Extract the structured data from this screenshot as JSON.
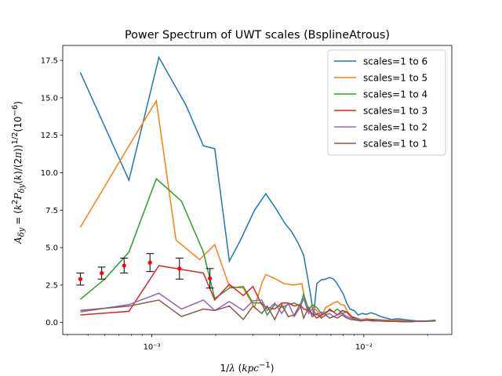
{
  "chart_data": {
    "type": "line",
    "title": "Power Spectrum of UWT scales (BsplineAtrous)",
    "xlabel": "1/λ (kpc⁻¹)",
    "ylabel": "Aδy = (k²Pδy(k)/(2π))¹⁄²(10⁻⁶)",
    "xscale": "log",
    "xlim": [
      0.00038,
      0.026
    ],
    "ylim": [
      -0.8,
      18.5
    ],
    "x_ticks": [
      {
        "value": 0.001,
        "label": "10⁻³"
      },
      {
        "value": 0.01,
        "label": "10⁻²"
      }
    ],
    "y_ticks": [
      "0.0",
      "2.5",
      "5.0",
      "7.5",
      "10.0",
      "12.5",
      "15.0",
      "17.5"
    ],
    "legend_position": "top-right",
    "grid": false,
    "series": [
      {
        "name": "scales=1 to 6",
        "color": "#1f77b4",
        "points": [
          [
            0.00046,
            16.7
          ],
          [
            0.00078,
            9.5
          ],
          [
            0.00108,
            17.7
          ],
          [
            0.00145,
            14.5
          ],
          [
            0.00175,
            11.8
          ],
          [
            0.00198,
            11.6
          ],
          [
            0.00232,
            4.1
          ],
          [
            0.00262,
            5.5
          ],
          [
            0.00305,
            7.5
          ],
          [
            0.00345,
            8.6
          ],
          [
            0.00385,
            7.6
          ],
          [
            0.00425,
            6.6
          ],
          [
            0.00455,
            6.1
          ],
          [
            0.0049,
            5.3
          ],
          [
            0.0052,
            4.5
          ],
          [
            0.0054,
            3.2
          ],
          [
            0.0056,
            1.9
          ],
          [
            0.0058,
            0.5
          ],
          [
            0.006,
            2.6
          ],
          [
            0.0063,
            2.85
          ],
          [
            0.0066,
            2.9
          ],
          [
            0.0069,
            3.0
          ],
          [
            0.0072,
            2.9
          ],
          [
            0.0074,
            2.7
          ],
          [
            0.0077,
            2.3
          ],
          [
            0.008,
            1.9
          ],
          [
            0.0083,
            1.3
          ],
          [
            0.0086,
            0.9
          ],
          [
            0.009,
            0.8
          ],
          [
            0.0094,
            0.5
          ],
          [
            0.0098,
            0.6
          ],
          [
            0.0103,
            0.55
          ],
          [
            0.0108,
            0.65
          ],
          [
            0.0114,
            0.55
          ],
          [
            0.012,
            0.4
          ],
          [
            0.0127,
            0.3
          ],
          [
            0.0135,
            0.2
          ],
          [
            0.0145,
            0.25
          ],
          [
            0.0155,
            0.2
          ],
          [
            0.0165,
            0.15
          ],
          [
            0.0178,
            0.1
          ],
          [
            0.019,
            0.1
          ],
          [
            0.0205,
            0.1
          ],
          [
            0.0218,
            0.15
          ]
        ]
      },
      {
        "name": "scales=1 to 5",
        "color": "#ff7f0e",
        "points": [
          [
            0.00046,
            6.35
          ],
          [
            0.00078,
            11.8
          ],
          [
            0.00105,
            14.8
          ],
          [
            0.0013,
            5.5
          ],
          [
            0.00168,
            4.2
          ],
          [
            0.00198,
            5.2
          ],
          [
            0.00232,
            2.4
          ],
          [
            0.0027,
            2.3
          ],
          [
            0.00305,
            1.0
          ],
          [
            0.0033,
            2.6
          ],
          [
            0.00345,
            3.2
          ],
          [
            0.00385,
            2.9
          ],
          [
            0.0042,
            2.6
          ],
          [
            0.00465,
            2.5
          ],
          [
            0.0051,
            2.6
          ],
          [
            0.0054,
            0.8
          ],
          [
            0.0057,
            1.1
          ],
          [
            0.006,
            0.8
          ],
          [
            0.0063,
            0.4
          ],
          [
            0.0066,
            1.0
          ],
          [
            0.0069,
            1.15
          ],
          [
            0.0072,
            1.3
          ],
          [
            0.0075,
            1.4
          ],
          [
            0.0078,
            1.2
          ],
          [
            0.0081,
            1.15
          ],
          [
            0.0084,
            0.7
          ],
          [
            0.0088,
            0.4
          ],
          [
            0.0092,
            0.3
          ],
          [
            0.0097,
            0.2
          ],
          [
            0.0103,
            0.25
          ],
          [
            0.011,
            0.2
          ],
          [
            0.0118,
            0.2
          ],
          [
            0.0127,
            0.15
          ],
          [
            0.0138,
            0.15
          ],
          [
            0.015,
            0.15
          ],
          [
            0.0165,
            0.1
          ],
          [
            0.018,
            0.1
          ],
          [
            0.0198,
            0.1
          ],
          [
            0.0218,
            0.15
          ]
        ]
      },
      {
        "name": "scales=1 to 4",
        "color": "#2ca02c",
        "points": [
          [
            0.00046,
            1.55
          ],
          [
            0.0006,
            2.9
          ],
          [
            0.00078,
            4.7
          ],
          [
            0.00105,
            9.6
          ],
          [
            0.00138,
            8.1
          ],
          [
            0.00175,
            4.7
          ],
          [
            0.00198,
            1.6
          ],
          [
            0.00232,
            2.3
          ],
          [
            0.0027,
            2.4
          ],
          [
            0.003,
            1.3
          ],
          [
            0.0033,
            1.3
          ],
          [
            0.0035,
            0.5
          ],
          [
            0.0038,
            1.2
          ],
          [
            0.0041,
            1.0
          ],
          [
            0.0044,
            1.2
          ],
          [
            0.0047,
            1.3
          ],
          [
            0.005,
            1.1
          ],
          [
            0.0052,
            1.9
          ],
          [
            0.0055,
            0.8
          ],
          [
            0.0057,
            1.2
          ],
          [
            0.006,
            1.0
          ],
          [
            0.0063,
            0.6
          ],
          [
            0.0066,
            0.7
          ],
          [
            0.0069,
            0.8
          ],
          [
            0.0072,
            0.7
          ],
          [
            0.0075,
            0.9
          ],
          [
            0.0079,
            0.6
          ],
          [
            0.0083,
            0.7
          ],
          [
            0.0087,
            0.4
          ],
          [
            0.0092,
            0.3
          ],
          [
            0.0097,
            0.15
          ],
          [
            0.0103,
            0.2
          ],
          [
            0.011,
            0.2
          ],
          [
            0.0118,
            0.15
          ],
          [
            0.0127,
            0.1
          ],
          [
            0.0138,
            0.1
          ],
          [
            0.015,
            0.1
          ],
          [
            0.0165,
            0.1
          ],
          [
            0.018,
            0.1
          ],
          [
            0.0198,
            0.1
          ],
          [
            0.0218,
            0.15
          ]
        ]
      },
      {
        "name": "scales=1 to 3",
        "color": "#d62728",
        "points": [
          [
            0.00046,
            0.5
          ],
          [
            0.00078,
            0.75
          ],
          [
            0.00108,
            3.8
          ],
          [
            0.00175,
            3.3
          ],
          [
            0.00198,
            1.5
          ],
          [
            0.00232,
            2.55
          ],
          [
            0.0027,
            1.8
          ],
          [
            0.003,
            2.4
          ],
          [
            0.0033,
            1.2
          ],
          [
            0.0035,
            1.0
          ],
          [
            0.0038,
            0.9
          ],
          [
            0.0041,
            1.3
          ],
          [
            0.0044,
            1.3
          ],
          [
            0.0047,
            1.1
          ],
          [
            0.005,
            1.2
          ],
          [
            0.0052,
            0.9
          ],
          [
            0.0055,
            0.8
          ],
          [
            0.0057,
            0.6
          ],
          [
            0.006,
            0.3
          ],
          [
            0.0063,
            0.5
          ],
          [
            0.0066,
            0.6
          ],
          [
            0.0069,
            0.9
          ],
          [
            0.0072,
            0.7
          ],
          [
            0.0075,
            0.5
          ],
          [
            0.0079,
            0.8
          ],
          [
            0.0083,
            0.7
          ],
          [
            0.0087,
            0.4
          ],
          [
            0.0092,
            0.2
          ],
          [
            0.0097,
            0.1
          ],
          [
            0.0103,
            0.2
          ],
          [
            0.011,
            0.15
          ],
          [
            0.0118,
            0.15
          ],
          [
            0.0127,
            0.1
          ],
          [
            0.0138,
            0.1
          ],
          [
            0.015,
            0.1
          ],
          [
            0.0165,
            0.05
          ],
          [
            0.018,
            0.1
          ],
          [
            0.0198,
            0.1
          ],
          [
            0.0218,
            0.1
          ]
        ]
      },
      {
        "name": "scales=1 to 2",
        "color": "#9467bd",
        "points": [
          [
            0.00046,
            0.7
          ],
          [
            0.00078,
            1.2
          ],
          [
            0.00108,
            1.95
          ],
          [
            0.00138,
            0.9
          ],
          [
            0.00175,
            1.5
          ],
          [
            0.00198,
            0.8
          ],
          [
            0.00232,
            1.4
          ],
          [
            0.0027,
            0.8
          ],
          [
            0.003,
            1.45
          ],
          [
            0.0033,
            1.5
          ],
          [
            0.0035,
            0.8
          ],
          [
            0.0038,
            1.3
          ],
          [
            0.0041,
            0.6
          ],
          [
            0.0044,
            1.3
          ],
          [
            0.0047,
            0.4
          ],
          [
            0.005,
            1.0
          ],
          [
            0.0052,
            1.6
          ],
          [
            0.0055,
            0.6
          ],
          [
            0.0057,
            0.9
          ],
          [
            0.006,
            0.5
          ],
          [
            0.0063,
            0.7
          ],
          [
            0.0066,
            0.5
          ],
          [
            0.0069,
            0.6
          ],
          [
            0.0072,
            0.4
          ],
          [
            0.0075,
            0.5
          ],
          [
            0.0079,
            0.6
          ],
          [
            0.0083,
            0.4
          ],
          [
            0.0087,
            0.3
          ],
          [
            0.0092,
            0.2
          ],
          [
            0.0097,
            0.15
          ],
          [
            0.0103,
            0.2
          ],
          [
            0.011,
            0.1
          ],
          [
            0.0118,
            0.15
          ],
          [
            0.0127,
            0.1
          ],
          [
            0.0138,
            0.1
          ],
          [
            0.015,
            0.1
          ],
          [
            0.0165,
            0.05
          ],
          [
            0.018,
            0.1
          ],
          [
            0.0198,
            0.1
          ],
          [
            0.0218,
            0.1
          ]
        ]
      },
      {
        "name": "scales=1 to 1",
        "color": "#8c564b",
        "points": [
          [
            0.00046,
            0.8
          ],
          [
            0.00078,
            1.1
          ],
          [
            0.00108,
            1.5
          ],
          [
            0.00138,
            0.4
          ],
          [
            0.00175,
            0.9
          ],
          [
            0.00198,
            0.8
          ],
          [
            0.00232,
            1.1
          ],
          [
            0.0027,
            0.2
          ],
          [
            0.003,
            1.1
          ],
          [
            0.0033,
            0.6
          ],
          [
            0.0035,
            1.1
          ],
          [
            0.0038,
            0.2
          ],
          [
            0.0041,
            1.2
          ],
          [
            0.0044,
            0.4
          ],
          [
            0.0047,
            0.5
          ],
          [
            0.005,
            1.2
          ],
          [
            0.0052,
            0.3
          ],
          [
            0.0055,
            1.0
          ],
          [
            0.0057,
            0.4
          ],
          [
            0.006,
            0.6
          ],
          [
            0.0063,
            0.3
          ],
          [
            0.0066,
            0.5
          ],
          [
            0.0069,
            0.3
          ],
          [
            0.0072,
            0.4
          ],
          [
            0.0075,
            0.3
          ],
          [
            0.0079,
            0.5
          ],
          [
            0.0083,
            0.3
          ],
          [
            0.0087,
            0.2
          ],
          [
            0.0092,
            0.15
          ],
          [
            0.0097,
            0.1
          ],
          [
            0.0103,
            0.15
          ],
          [
            0.011,
            0.1
          ],
          [
            0.0118,
            0.1
          ],
          [
            0.0127,
            0.08
          ],
          [
            0.0138,
            0.08
          ],
          [
            0.015,
            0.05
          ],
          [
            0.0165,
            0.05
          ],
          [
            0.018,
            0.08
          ],
          [
            0.0198,
            0.08
          ],
          [
            0.0218,
            0.1
          ]
        ]
      }
    ],
    "errorbar_series": {
      "color": "#ff0000",
      "points": [
        {
          "x": 0.00046,
          "y": 2.9,
          "yerr": 0.4
        },
        {
          "x": 0.00058,
          "y": 3.3,
          "yerr": 0.4
        },
        {
          "x": 0.00074,
          "y": 3.8,
          "yerr": 0.5
        },
        {
          "x": 0.00098,
          "y": 4.0,
          "yerr": 0.6
        },
        {
          "x": 0.00135,
          "y": 3.6,
          "yerr": 0.7
        },
        {
          "x": 0.00188,
          "y": 2.95,
          "yerr": 0.65
        }
      ]
    }
  }
}
